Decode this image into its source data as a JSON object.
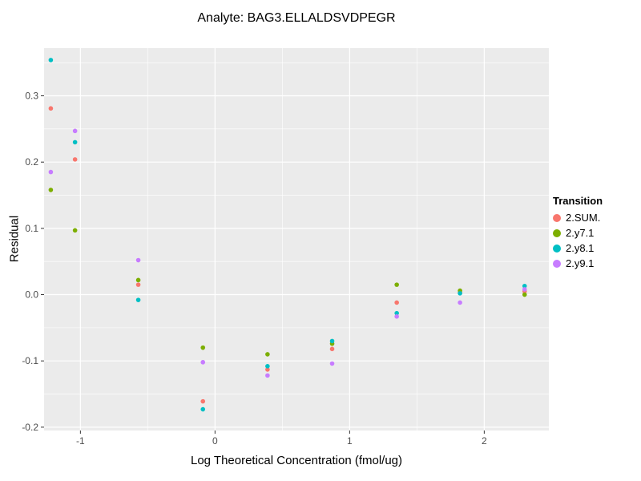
{
  "title": "Analyte: BAG3.ELLALDSVDPEGR",
  "chart_data": {
    "type": "scatter",
    "title": "Analyte: BAG3.ELLALDSVDPEGR",
    "xlabel": "Log Theoretical Concentration (fmol/ug)",
    "ylabel": "Residual",
    "xlim": [
      -1.27,
      2.48
    ],
    "ylim": [
      -0.205,
      0.372
    ],
    "x_ticks": [
      -1,
      0,
      1,
      2
    ],
    "x_tick_labels": [
      "-1",
      "0",
      "1",
      "2"
    ],
    "x_minor_ticks": [
      -0.5,
      0.5,
      1.5
    ],
    "y_ticks": [
      -0.2,
      -0.1,
      0.0,
      0.1,
      0.2,
      0.3
    ],
    "y_tick_labels": [
      "-0.2",
      "-0.1",
      "0.0",
      "0.1",
      "0.2",
      "0.3"
    ],
    "y_minor_ticks": [
      -0.15,
      -0.05,
      0.05,
      0.15,
      0.25,
      0.35
    ],
    "grid": true,
    "panel_bg": "#EBEBEB",
    "grid_color": "#FFFFFF",
    "tick_label_color": "#4d4d4d",
    "tick_mark_color": "#333333",
    "legend_title": "Transition",
    "legend_position": "right",
    "series": [
      {
        "name": "2.SUM.",
        "color": "#F8766D",
        "points": [
          [
            -1.22,
            0.281
          ],
          [
            -1.04,
            0.204
          ],
          [
            -0.57,
            0.015
          ],
          [
            -0.09,
            -0.161
          ],
          [
            0.39,
            -0.113
          ],
          [
            0.87,
            -0.082
          ],
          [
            1.35,
            -0.012
          ],
          [
            1.82,
            0.003
          ],
          [
            2.3,
            0.005
          ]
        ]
      },
      {
        "name": "2.y7.1",
        "color": "#7CAE00",
        "points": [
          [
            -1.22,
            0.158
          ],
          [
            -1.04,
            0.097
          ],
          [
            -0.57,
            0.022
          ],
          [
            -0.09,
            -0.08
          ],
          [
            0.39,
            -0.09
          ],
          [
            0.87,
            -0.074
          ],
          [
            1.35,
            0.015
          ],
          [
            1.82,
            0.006
          ],
          [
            2.3,
            0.0
          ]
        ]
      },
      {
        "name": "2.y8.1",
        "color": "#00BFC4",
        "points": [
          [
            -1.22,
            0.354
          ],
          [
            -1.04,
            0.23
          ],
          [
            -0.57,
            -0.008
          ],
          [
            -0.09,
            -0.173
          ],
          [
            0.39,
            -0.108
          ],
          [
            0.87,
            -0.07
          ],
          [
            1.35,
            -0.028
          ],
          [
            1.82,
            0.002
          ],
          [
            2.3,
            0.013
          ]
        ]
      },
      {
        "name": "2.y9.1",
        "color": "#C77CFF",
        "points": [
          [
            -1.22,
            0.185
          ],
          [
            -1.04,
            0.247
          ],
          [
            -0.57,
            0.052
          ],
          [
            -0.09,
            -0.102
          ],
          [
            0.39,
            -0.122
          ],
          [
            0.87,
            -0.104
          ],
          [
            1.35,
            -0.033
          ],
          [
            1.82,
            -0.012
          ],
          [
            2.3,
            0.008
          ]
        ]
      }
    ]
  }
}
